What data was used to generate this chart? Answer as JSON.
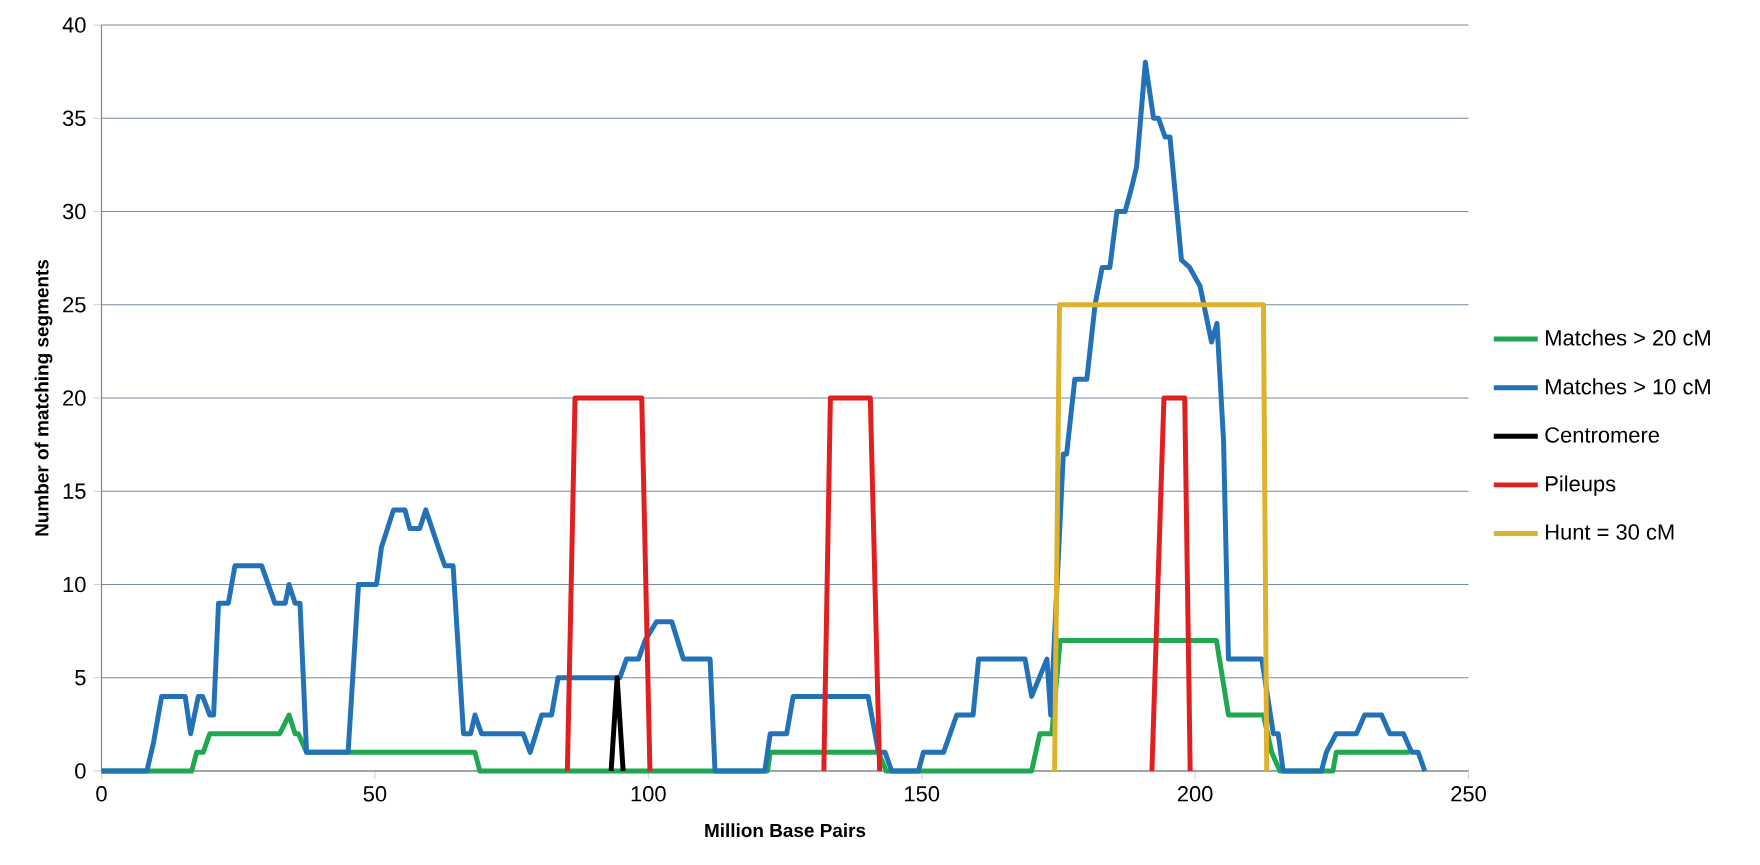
{
  "chart_data": {
    "type": "line",
    "xlabel": "Million Base Pairs",
    "ylabel": "Number of matching segments",
    "xlim": [
      0,
      250
    ],
    "xticks": [
      0,
      50,
      100,
      150,
      200,
      250
    ],
    "ylim": [
      0,
      40
    ],
    "yticks": [
      0,
      5,
      10,
      15,
      20,
      25,
      30,
      35,
      40
    ],
    "grid": "y",
    "legend": "right",
    "marker": "none",
    "line_style": "solid",
    "series": [
      {
        "name": "Matches > 20 cM",
        "color": "#1fa84f",
        "x": [
          0,
          16.5,
          17.4,
          18.6,
          19.8,
          32.6,
          34.3,
          35.4,
          36.0,
          37.5,
          68.3,
          69.2,
          121.8,
          122.3,
          142.1,
          143.5,
          170.1,
          171.6,
          173.8,
          175.3,
          203.9,
          206.1,
          212.5,
          214.0,
          215.5,
          225.2,
          225.8,
          239.2
        ],
        "values": [
          0,
          0,
          1,
          1,
          2,
          2,
          3,
          2,
          2,
          1,
          1,
          0,
          0,
          1,
          1,
          0,
          0,
          2,
          2,
          7,
          7,
          3,
          3,
          1,
          0,
          0,
          1,
          1
        ]
      },
      {
        "name": "Matches > 10 cM",
        "color": "#2372b8",
        "x": [
          0,
          8.3,
          9.5,
          11.0,
          15.3,
          16.3,
          17.7,
          18.5,
          19.8,
          20.5,
          21.4,
          23.2,
          24.4,
          29.3,
          31.7,
          33.6,
          34.3,
          35.4,
          36.3,
          37.5,
          45.1,
          47.0,
          50.3,
          51.2,
          53.4,
          55.5,
          56.4,
          58.2,
          59.3,
          61.6,
          62.8,
          64.3,
          66.2,
          67.5,
          68.3,
          69.5,
          77.1,
          78.4,
          80.5,
          82.3,
          83.5,
          94.8,
          96.0,
          98.2,
          99.4,
          101.5,
          104.3,
          106.4,
          111.3,
          112.2,
          121.3,
          122.3,
          125.3,
          126.5,
          140.2,
          142.1,
          143.3,
          144.5,
          149.4,
          150.3,
          154.0,
          156.4,
          159.4,
          160.4,
          168.9,
          170.1,
          172.9,
          173.6,
          175.9,
          176.5,
          178.0,
          180.2,
          181.7,
          183.0,
          184.4,
          185.7,
          187.2,
          188.4,
          189.3,
          190.9,
          192.4,
          193.3,
          194.5,
          195.4,
          197.5,
          199.0,
          200.9,
          203.0,
          204.0,
          205.2,
          206.1,
          212.2,
          214.3,
          215.2,
          216.1,
          223.1,
          224.0,
          225.8,
          229.5,
          231.0,
          234.1,
          235.6,
          238.1,
          239.6,
          240.8,
          242.0
        ],
        "values": [
          0,
          0,
          1.5,
          4,
          4,
          2,
          4,
          4,
          3,
          3,
          9,
          9,
          11,
          11,
          9,
          9,
          10,
          9,
          9,
          1,
          1,
          10,
          10,
          12,
          14,
          14,
          13,
          13,
          14,
          12,
          11,
          11,
          2,
          2,
          3,
          2,
          2,
          1,
          3,
          3,
          5,
          5,
          6,
          6,
          7,
          8,
          8,
          6,
          6,
          0,
          0,
          2,
          2,
          4,
          4,
          1,
          1,
          0,
          0,
          1,
          1,
          3,
          3,
          6,
          6,
          4,
          6,
          3,
          17,
          17,
          21,
          21,
          25,
          27,
          27,
          30,
          30,
          31.3,
          32.4,
          38,
          35,
          35,
          34,
          34,
          27.4,
          27,
          26,
          23,
          24,
          17.7,
          6,
          6,
          2,
          2,
          0,
          0,
          1,
          2,
          2,
          3,
          3,
          2,
          2,
          1,
          1,
          0
        ]
      },
      {
        "name": "Centromere",
        "color": "#000000",
        "x": [
          93.2,
          94.3,
          95.4
        ],
        "values": [
          0,
          5,
          0
        ]
      },
      {
        "name": "Pileups",
        "color": "#e02020",
        "x": [
          85.2,
          86.6,
          98.8,
          100.3,
          116,
          132.1,
          133.3,
          140.6,
          142.3,
          167,
          192.1,
          194.3,
          198.1,
          199.1
        ],
        "values": [
          0,
          20,
          20,
          0,
          null,
          0,
          20,
          20,
          0,
          null,
          0,
          20,
          20,
          0
        ]
      },
      {
        "name": "Hunt = 30 cM",
        "color": "#dcb22e",
        "x": [
          174.3,
          175.2,
          212.5,
          213.1
        ],
        "values": [
          0,
          25,
          25,
          0
        ]
      }
    ]
  }
}
